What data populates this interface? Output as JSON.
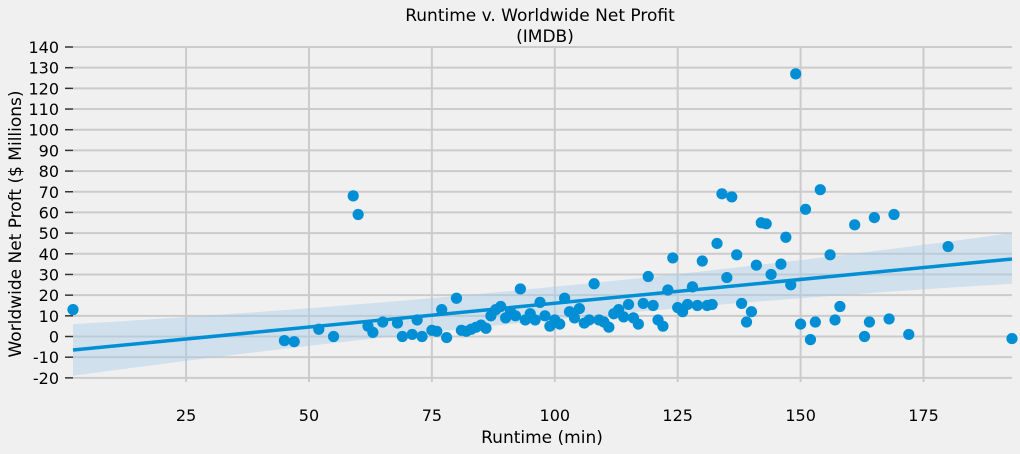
{
  "chart_data": {
    "type": "scatter",
    "title": "Runtime v. Worldwide Net Profit",
    "subtitle": "(IMDB)",
    "xlabel": "Runtime (min)",
    "ylabel": "Worldwide Net Proft ($ Millions)",
    "xlim": [
      2,
      193
    ],
    "ylim": [
      -22,
      140
    ],
    "xticks": [
      25,
      50,
      75,
      100,
      125,
      150,
      175
    ],
    "yticks": [
      -20,
      -10,
      0,
      10,
      20,
      30,
      40,
      50,
      60,
      70,
      80,
      90,
      100,
      110,
      120,
      130,
      140
    ],
    "grid": true,
    "colors": {
      "points": "#008fd5",
      "line": "#008fd5",
      "band": "#a9cde8",
      "grid": "#cbcbcb",
      "background": "#f0f0f0"
    },
    "regression": {
      "x": [
        2,
        193
      ],
      "y": [
        -6.5,
        37.5
      ],
      "ci_lower": [
        -19,
        25.5
      ],
      "ci_upper": [
        6,
        50
      ]
    },
    "points": [
      [
        2,
        13
      ],
      [
        45,
        -2
      ],
      [
        47,
        -2.5
      ],
      [
        52,
        3.5
      ],
      [
        55,
        0
      ],
      [
        59,
        68
      ],
      [
        60,
        59
      ],
      [
        62,
        5
      ],
      [
        63,
        2
      ],
      [
        65,
        7
      ],
      [
        68,
        6.5
      ],
      [
        69,
        0
      ],
      [
        71,
        1
      ],
      [
        72,
        8
      ],
      [
        73,
        0
      ],
      [
        75,
        3
      ],
      [
        76,
        2.5
      ],
      [
        77,
        13
      ],
      [
        78,
        -0.5
      ],
      [
        80,
        18.5
      ],
      [
        81,
        3
      ],
      [
        82,
        2.5
      ],
      [
        83,
        3.5
      ],
      [
        84,
        4.5
      ],
      [
        85,
        5.5
      ],
      [
        86,
        4
      ],
      [
        87,
        10
      ],
      [
        88,
        13
      ],
      [
        89,
        14.5
      ],
      [
        90,
        9
      ],
      [
        91,
        12
      ],
      [
        92,
        10
      ],
      [
        93,
        23
      ],
      [
        94,
        8
      ],
      [
        95,
        11
      ],
      [
        96,
        8
      ],
      [
        97,
        16.5
      ],
      [
        98,
        10
      ],
      [
        99,
        5
      ],
      [
        100,
        8
      ],
      [
        101,
        6
      ],
      [
        102,
        18.5
      ],
      [
        103,
        12
      ],
      [
        104,
        9
      ],
      [
        105,
        13.5
      ],
      [
        106,
        6.5
      ],
      [
        107,
        8
      ],
      [
        108,
        25.5
      ],
      [
        109,
        8
      ],
      [
        110,
        7
      ],
      [
        111,
        4.5
      ],
      [
        112,
        11
      ],
      [
        113,
        13
      ],
      [
        114,
        9.5
      ],
      [
        115,
        15.5
      ],
      [
        116,
        9
      ],
      [
        117,
        6
      ],
      [
        118,
        16
      ],
      [
        119,
        29
      ],
      [
        120,
        15
      ],
      [
        121,
        8
      ],
      [
        122,
        5
      ],
      [
        123,
        22.5
      ],
      [
        124,
        38
      ],
      [
        125,
        14
      ],
      [
        126,
        12
      ],
      [
        127,
        15.5
      ],
      [
        128,
        24
      ],
      [
        129,
        15
      ],
      [
        130,
        36.5
      ],
      [
        131,
        15
      ],
      [
        132,
        15.5
      ],
      [
        133,
        45
      ],
      [
        134,
        69
      ],
      [
        135,
        28.5
      ],
      [
        136,
        67.5
      ],
      [
        137,
        39.5
      ],
      [
        138,
        16
      ],
      [
        139,
        7
      ],
      [
        140,
        12
      ],
      [
        141,
        34.5
      ],
      [
        142,
        55
      ],
      [
        143,
        54.5
      ],
      [
        144,
        30
      ],
      [
        146,
        35
      ],
      [
        147,
        48
      ],
      [
        148,
        25
      ],
      [
        149,
        127
      ],
      [
        150,
        6
      ],
      [
        151,
        61.5
      ],
      [
        152,
        -1.5
      ],
      [
        153,
        7
      ],
      [
        154,
        71
      ],
      [
        156,
        39.5
      ],
      [
        157,
        8
      ],
      [
        158,
        14.5
      ],
      [
        161,
        54
      ],
      [
        163,
        0
      ],
      [
        164,
        7
      ],
      [
        165,
        57.5
      ],
      [
        168,
        8.5
      ],
      [
        169,
        59
      ],
      [
        172,
        1
      ],
      [
        180,
        43.5
      ],
      [
        193,
        -1
      ]
    ]
  }
}
